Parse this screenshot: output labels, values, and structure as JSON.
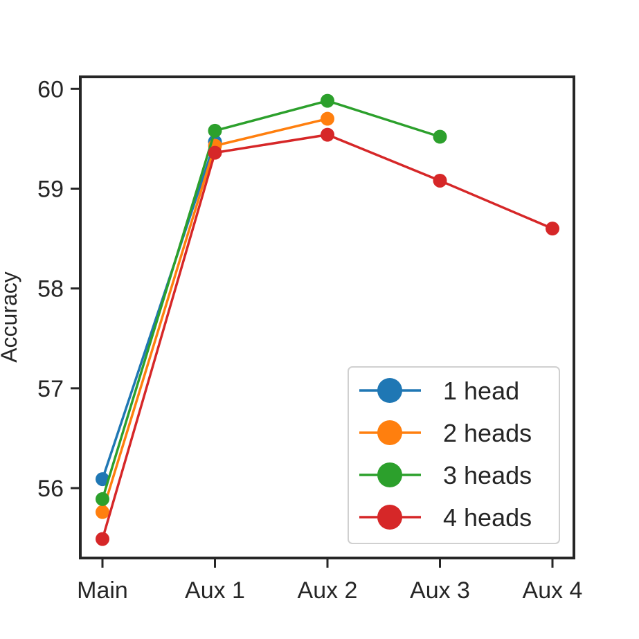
{
  "chart_data": {
    "type": "line",
    "xlabel": "",
    "ylabel": "Accuracy",
    "categories": [
      "Main",
      "Aux 1",
      "Aux 2",
      "Aux 3",
      "Aux 4"
    ],
    "ylim": [
      55.3,
      60.12
    ],
    "yticks": [
      56,
      57,
      58,
      59,
      60
    ],
    "grid": false,
    "legend_position": "lower-right",
    "series": [
      {
        "name": "1 head",
        "color": "#1f77b4",
        "values": [
          56.09,
          59.47,
          null,
          null,
          null
        ]
      },
      {
        "name": "2 heads",
        "color": "#ff7f0e",
        "values": [
          55.76,
          59.43,
          59.7,
          null,
          null
        ]
      },
      {
        "name": "3 heads",
        "color": "#2ca02c",
        "values": [
          55.89,
          59.58,
          59.88,
          59.52,
          null
        ]
      },
      {
        "name": "4 heads",
        "color": "#d62728",
        "values": [
          55.49,
          59.36,
          59.54,
          59.08,
          58.6
        ]
      }
    ]
  }
}
